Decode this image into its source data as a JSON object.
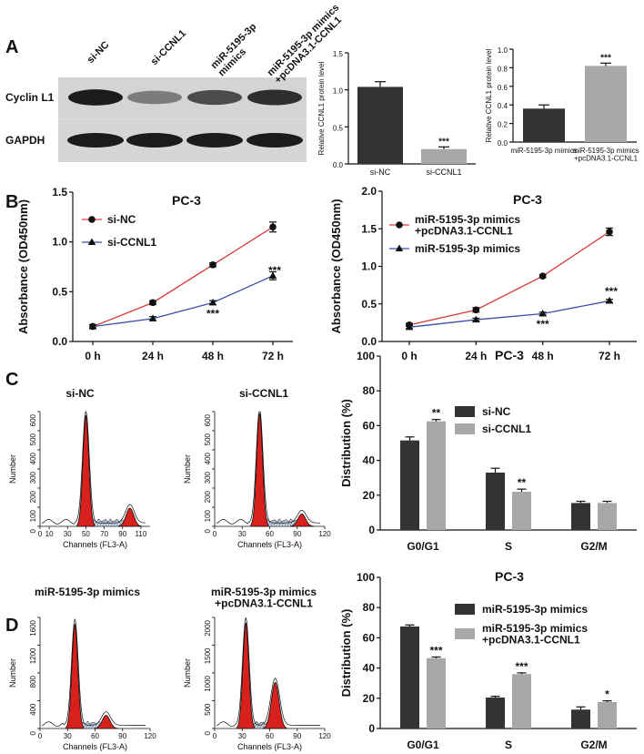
{
  "panel_labels": [
    "A",
    "B",
    "C",
    "D"
  ],
  "western_blot": {
    "lane_labels": [
      "si-NC",
      "si-CCNL1",
      "miR-5195-3p\nmimics",
      "miR-5195-3p mimics\n+pcDNA3.1-CCNL1"
    ],
    "row_labels": [
      "Cyclin L1",
      "GAPDH"
    ],
    "cyclin_band_intensity": [
      0.95,
      0.45,
      0.7,
      0.85
    ],
    "gapdh_band_intensity": [
      0.95,
      0.95,
      0.95,
      0.95
    ]
  },
  "chart_data": [
    {
      "id": "a_bar_1",
      "type": "bar",
      "categories": [
        "si-NC",
        "si-CCNL1"
      ],
      "values": [
        1.04,
        0.2
      ],
      "errors": [
        0.07,
        0.03
      ],
      "colors": [
        "#333333",
        "#a8a8a8"
      ],
      "annotations": [
        "",
        "***"
      ],
      "ylabel": "Relative CCNL1 protein level",
      "ylim": [
        0,
        1.5
      ],
      "yticks": [
        "0.0",
        "0.5",
        "1.0",
        "1.5"
      ]
    },
    {
      "id": "a_bar_2",
      "type": "bar",
      "categories": [
        "miR-5195-3p mimics",
        "miR-5195-3p mimics\n+pcDNA3.1-CCNL1"
      ],
      "values": [
        0.36,
        0.82
      ],
      "errors": [
        0.04,
        0.03
      ],
      "colors": [
        "#333333",
        "#a8a8a8"
      ],
      "annotations": [
        "",
        "***"
      ],
      "ylabel": "Relative CCNL1 protein level",
      "ylim": [
        0,
        1.0
      ],
      "yticks": [
        "0.0",
        "0.2",
        "0.4",
        "0.6",
        "0.8",
        "1.0"
      ]
    },
    {
      "id": "b_line_1",
      "type": "line",
      "title": "PC-3",
      "categories": [
        "0 h",
        "24 h",
        "48 h",
        "72 h"
      ],
      "series": [
        {
          "name": "si-NC",
          "values": [
            0.15,
            0.39,
            0.77,
            1.15
          ],
          "errors": [
            0.02,
            0.02,
            0.02,
            0.05
          ],
          "color": "#d93a3a",
          "marker": "circle"
        },
        {
          "name": "si-CCNL1",
          "values": [
            0.15,
            0.23,
            0.39,
            0.66
          ],
          "errors": [
            0.02,
            0.02,
            0.02,
            0.04
          ],
          "color": "#3a4fa8",
          "marker": "triangle"
        }
      ],
      "annotations": [
        {
          "x": "48 h",
          "text": "***"
        },
        {
          "x": "72 h",
          "text": "***"
        }
      ],
      "ylabel": "Absorbance (OD450nm)",
      "ylim": [
        0,
        1.5
      ],
      "yticks": [
        "0.0",
        "0.5",
        "1.0",
        "1.5"
      ],
      "legend": "top-left"
    },
    {
      "id": "b_line_2",
      "type": "line",
      "title": "PC-3",
      "categories": [
        "0 h",
        "24 h",
        "48 h",
        "72 h"
      ],
      "series": [
        {
          "name": "miR-5195-3p mimics\n+pcDNA3.1-CCNL1",
          "values": [
            0.22,
            0.42,
            0.87,
            1.46
          ],
          "errors": [
            0.02,
            0.03,
            0.02,
            0.05
          ],
          "color": "#d93a3a",
          "marker": "circle"
        },
        {
          "name": "miR-5195-3p mimics",
          "values": [
            0.19,
            0.29,
            0.37,
            0.54
          ],
          "errors": [
            0.02,
            0.02,
            0.02,
            0.02
          ],
          "color": "#3a4fa8",
          "marker": "triangle"
        }
      ],
      "annotations": [
        {
          "x": "48 h",
          "text": "***"
        },
        {
          "x": "72 h",
          "text": "***"
        }
      ],
      "ylabel": "Absorbance (OD450nm)",
      "ylim": [
        0,
        2.0
      ],
      "yticks": [
        "0.0",
        "0.5",
        "1.0",
        "1.5",
        "2.0"
      ],
      "legend": "top-left"
    },
    {
      "id": "c_hist_1",
      "type": "area",
      "title": "si-NC",
      "xlabel": "Channels (FL3-A)",
      "ylabel": "Number",
      "xlim": [
        0,
        120
      ],
      "xticks": [
        "0",
        "10",
        "30",
        "50",
        "70",
        "90",
        "110"
      ],
      "ylim": [
        0,
        600
      ],
      "yticks": [
        "0",
        "100",
        "200",
        "300",
        "400",
        "500",
        "600"
      ],
      "g1_peak": {
        "x": 50,
        "height": 580
      },
      "g2_peak": {
        "x": 98,
        "height": 95
      }
    },
    {
      "id": "c_hist_2",
      "type": "area",
      "title": "si-CCNL1",
      "xlabel": "Channels (FL3-A)",
      "ylabel": "Number",
      "xlim": [
        0,
        120
      ],
      "xticks": [
        "0",
        "30",
        "60",
        "90",
        "120"
      ],
      "ylim": [
        0,
        600
      ],
      "yticks": [
        "0",
        "100",
        "200",
        "300",
        "400",
        "500",
        "600"
      ],
      "g1_peak": {
        "x": 49,
        "height": 590
      },
      "g2_peak": {
        "x": 95,
        "height": 65
      }
    },
    {
      "id": "c_bar",
      "type": "bar",
      "title": "PC-3",
      "categories": [
        "G0/G1",
        "S",
        "G2/M"
      ],
      "series": [
        {
          "name": "si-NC",
          "values": [
            51.5,
            33,
            15.5
          ],
          "errors": [
            2,
            2.5,
            1
          ],
          "color": "#333333"
        },
        {
          "name": "si-CCNL1",
          "values": [
            62.5,
            22,
            15.5
          ],
          "errors": [
            1,
            1.5,
            1
          ],
          "color": "#a8a8a8"
        }
      ],
      "annotations": [
        {
          "category": "G0/G1",
          "series": 1,
          "text": "**"
        },
        {
          "category": "S",
          "series": 1,
          "text": "**"
        }
      ],
      "ylabel": "Distribution (%)",
      "ylim": [
        0,
        100
      ],
      "yticks": [
        "0",
        "20",
        "40",
        "60",
        "80",
        "100"
      ],
      "legend": "top-right"
    },
    {
      "id": "d_hist_1",
      "type": "area",
      "title": "miR-5195-3p mimics",
      "xlabel": "Channels (FL3-A)",
      "ylabel": "Number",
      "xlim": [
        0,
        120
      ],
      "xticks": [
        "0",
        "30",
        "60",
        "90",
        "120"
      ],
      "ylim": [
        0,
        1600
      ],
      "yticks": [
        "0",
        "400",
        "800",
        "1200",
        "1600"
      ],
      "g1_peak": {
        "x": 38,
        "height": 1500
      },
      "g2_peak": {
        "x": 72,
        "height": 190
      }
    },
    {
      "id": "d_hist_2",
      "type": "area",
      "title": "miR-5195-3p mimics\n+pcDNA3.1-CCNL1",
      "xlabel": "Channels (FL3-A)",
      "ylabel": "Number",
      "xlim": [
        0,
        120
      ],
      "xticks": [
        "0",
        "30",
        "60",
        "90",
        "120"
      ],
      "ylim": [
        0,
        2000
      ],
      "yticks": [
        "0",
        "500",
        "1000",
        "1500",
        "2000"
      ],
      "g1_peak": {
        "x": 34,
        "height": 1900
      },
      "g2_peak": {
        "x": 66,
        "height": 830
      }
    },
    {
      "id": "d_bar",
      "type": "bar",
      "title": "PC-3",
      "categories": [
        "G0/G1",
        "S",
        "G2/M"
      ],
      "series": [
        {
          "name": "miR-5195-3p mimics",
          "values": [
            67.5,
            20.5,
            12.5
          ],
          "errors": [
            1,
            0.8,
            1.8
          ],
          "color": "#333333"
        },
        {
          "name": "miR-5195-3p mimics\n+pcDNA3.1-CCNL1",
          "values": [
            46.5,
            36,
            17.5
          ],
          "errors": [
            0.8,
            0.8,
            0.8
          ],
          "color": "#a8a8a8"
        }
      ],
      "annotations": [
        {
          "category": "G0/G1",
          "series": 1,
          "text": "***"
        },
        {
          "category": "S",
          "series": 1,
          "text": "***"
        },
        {
          "category": "G2/M",
          "series": 1,
          "text": "*"
        }
      ],
      "ylabel": "Distribution (%)",
      "ylim": [
        0,
        100
      ],
      "yticks": [
        "0",
        "20",
        "40",
        "60",
        "80",
        "100"
      ],
      "legend": "top-right"
    }
  ]
}
